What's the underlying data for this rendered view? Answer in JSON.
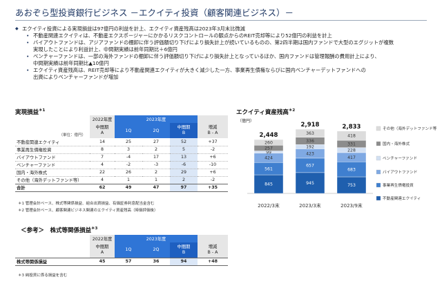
{
  "title": "あおぞら型投資銀行ビジネス －エクイティ投資（顧客関連ビジネス）－",
  "bullets": {
    "b1": "エクイティ投資による実現損益は97億円の利益を計上、エクイティ資産残高は2023年3月末比微減",
    "b1_1": "不動産関連エクイティは、不動産エクスポージャーにかかるリスクコントロールの観点からのREIT売却等により52億円の利益を計上",
    "b1_2a": "バイアウトファンドは、アジアファンドの棚卸に伴う評価額切り下げにより損失計上が続いているものの、第2四半期は国内ファンドで大型のエグジットが複数",
    "b1_2b": "実現したことにより利益計上、中間期実績は前年同期比＋6億円",
    "b1_3a": "ベンチャーファンドは、一部の海外ファンドの棚卸に伴う評価額切り下げにより損失計上となっているほか、国内ファンドは管理報酬の費用計上により、",
    "b1_3b": "中間期実績は前年同期比▲10億円",
    "b2a": "エクイティ資産残高は、REIT売却等により不動産関連エクイティが大きく減少した一方、事業再生債権ならびに国内ベンチャーデットファンドへの",
    "b2b": "出資によりベンチャーファンドが増加"
  },
  "realized": {
    "title": "実現損益",
    "title_sup": "＊1",
    "unit": "（単位：億円）",
    "h_2022": "2022年度",
    "h_2023": "2023年度",
    "h_interim": "中間期",
    "h_a": "A",
    "h_1q": "1Q",
    "h_2q": "2Q",
    "h_b": "B",
    "h_diff": "増減",
    "h_diff2": "B - A",
    "rows": [
      {
        "label": "不動産関連エクイティ",
        "a": "14",
        "q1": "25",
        "q2": "27",
        "b": "52",
        "d": "+37"
      },
      {
        "label": "事業再生債権投資",
        "a": "8",
        "q1": "3",
        "q2": "2",
        "b": "5",
        "d": "-2"
      },
      {
        "label": "バイアウトファンド",
        "a": "7",
        "q1": "-4",
        "q2": "17",
        "b": "13",
        "d": "+6"
      },
      {
        "label": "ベンチャーファンド",
        "a": "4",
        "q1": "-2",
        "q2": "-3",
        "b": "-6",
        "d": "-10"
      },
      {
        "label": "国内・海外株式",
        "a": "22",
        "q1": "26",
        "q2": "2",
        "b": "29",
        "d": "+6"
      },
      {
        "label": "その他（海外デットファンド等）",
        "a": "4",
        "q1": "1",
        "q2": "1",
        "b": "2",
        "d": "-2"
      }
    ],
    "total": {
      "label": "合計",
      "a": "62",
      "q1": "49",
      "q2": "47",
      "b": "97",
      "d": "+35"
    },
    "note1": "＊1 管理会計ベース、株式等関係損益、組合出資損益、有価証券利息配当金含む",
    "note2": "＊2 管理会計ベース、顧客関連ビジネス関連のエクイティ資産残高（時価評価後）"
  },
  "ref": {
    "title": "＜参考＞　株式等関係損益",
    "title_sup": "＊3",
    "row": {
      "label": "株式等関係損益",
      "a": "45",
      "q1": "57",
      "q2": "36",
      "b": "94",
      "d": "+48"
    },
    "note3": "＊3 純投資に係る損益を含む"
  },
  "chart_data": {
    "type": "bar",
    "title": "エクイティ資産残高",
    "title_sup": "＊2",
    "ylabel": "（億円）",
    "categories": [
      "2022/3末",
      "2023/3末",
      "2023/9末"
    ],
    "totals": [
      2448,
      2918,
      2833
    ],
    "series": [
      {
        "name": "不動産関連エクイティ",
        "color": "#1f5fae",
        "values": [
          845,
          945,
          753
        ]
      },
      {
        "name": "事業再生債権投資",
        "color": "#3f7fcf",
        "values": [
          561,
          657,
          683
        ]
      },
      {
        "name": "バイアウトファンド",
        "color": "#7fa9e3",
        "values": [
          424,
          423,
          417
        ]
      },
      {
        "name": "ベンチャーファンド",
        "color": "#d2e0f3",
        "values": [
          99,
          192,
          228
        ]
      },
      {
        "name": "国内・海外株式",
        "color": "#8c8c8c",
        "values": [
          257,
          336,
          331
        ]
      },
      {
        "name": "その他（海外デットファンド等）",
        "color": "#dcdcdc",
        "values": [
          260,
          363,
          418
        ]
      }
    ]
  }
}
